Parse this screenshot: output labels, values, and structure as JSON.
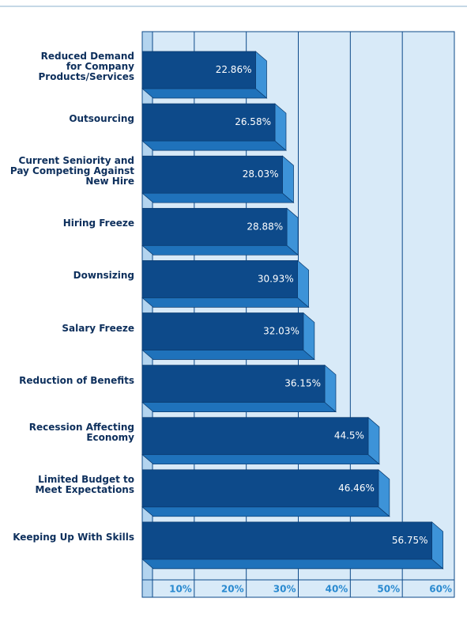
{
  "chart_data": {
    "type": "barh",
    "categories": [
      "Reduced Demand\nfor Company\nProducts/Services",
      "Outsourcing",
      "Current Seniority and\nPay Competing Against\nNew Hire",
      "Hiring Freeze",
      "Downsizing",
      "Salary Freeze",
      "Reduction of Benefits",
      "Recession Affecting\nEconomy",
      "Limited Budget to\nMeet Expectations",
      "Keeping Up With Skills"
    ],
    "values": [
      22.86,
      26.58,
      28.03,
      28.88,
      30.93,
      32.03,
      36.15,
      44.5,
      46.46,
      56.75
    ],
    "value_labels": [
      "22.86%",
      "26.58%",
      "28.03%",
      "28.88%",
      "30.93%",
      "32.03%",
      "36.15%",
      "44.5%",
      "46.46%",
      "56.75%"
    ],
    "color": "#0d4a8a",
    "xlim": [
      0,
      60
    ],
    "xticks": [
      {
        "value": 10,
        "label": "10%"
      },
      {
        "value": 20,
        "label": "20%"
      },
      {
        "value": 30,
        "label": "30%"
      },
      {
        "value": 40,
        "label": "40%"
      },
      {
        "value": 50,
        "label": "50%"
      },
      {
        "value": 60,
        "label": "60%"
      }
    ],
    "grid": true
  }
}
